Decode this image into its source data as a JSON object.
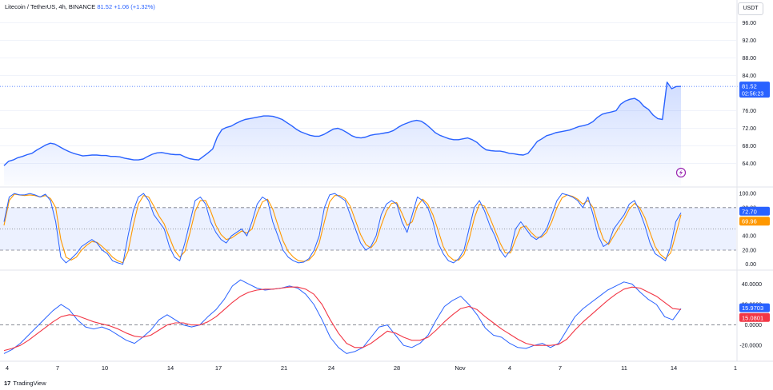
{
  "header": {
    "symbol": "Litecoin / TetherUS, 4h, BINANCE",
    "price": "81.52",
    "change": "+1.06 (+1.32%)"
  },
  "currency_button": "USDT",
  "branding": {
    "logo_mark": "17",
    "name": "TradingView"
  },
  "colors": {
    "price_line": "#2962ff",
    "signal": "#f23645",
    "stoch_d": "#ff9800",
    "band_fill": "#2962ff"
  },
  "x_ticks": [
    "4",
    "7",
    "10",
    "14",
    "17",
    "21",
    "24",
    "28",
    "Nov",
    "4",
    "7",
    "11",
    "14",
    "1"
  ],
  "chart_data": [
    {
      "type": "area",
      "name": "price",
      "y_ticks": [
        "96.00",
        "92.00",
        "88.00",
        "84.00",
        "76.00",
        "72.00",
        "68.00",
        "64.00"
      ],
      "ylim": [
        59,
        99
      ],
      "last_price_label": "81.52",
      "countdown_label": "02:56:23",
      "values": [
        63.5,
        64.5,
        64.8,
        65.3,
        65.6,
        66.0,
        66.3,
        67.0,
        67.6,
        68.2,
        68.6,
        68.4,
        67.8,
        67.2,
        66.7,
        66.3,
        66.0,
        65.7,
        65.8,
        65.9,
        65.9,
        65.8,
        65.8,
        65.6,
        65.6,
        65.5,
        65.2,
        65.0,
        64.8,
        64.8,
        65.0,
        65.6,
        66.1,
        66.4,
        66.5,
        66.3,
        66.1,
        66.0,
        66.0,
        65.5,
        65.1,
        64.9,
        64.8,
        65.6,
        66.4,
        67.3,
        70.0,
        71.7,
        72.2,
        72.5,
        73.1,
        73.6,
        74.0,
        74.2,
        74.4,
        74.6,
        74.8,
        74.8,
        74.7,
        74.4,
        74.0,
        73.3,
        72.6,
        71.8,
        71.2,
        70.8,
        70.4,
        70.2,
        70.2,
        70.6,
        71.2,
        71.8,
        72.0,
        71.6,
        71.0,
        70.3,
        69.9,
        69.8,
        70.0,
        70.4,
        70.6,
        70.7,
        70.9,
        71.1,
        71.5,
        72.2,
        72.8,
        73.2,
        73.6,
        73.8,
        73.6,
        72.9,
        72.0,
        71.0,
        70.4,
        70.0,
        69.6,
        69.4,
        69.4,
        69.6,
        69.8,
        69.4,
        68.8,
        67.8,
        67.1,
        66.9,
        66.8,
        66.8,
        66.6,
        66.3,
        66.2,
        66.0,
        65.9,
        66.3,
        67.6,
        69.0,
        69.6,
        70.3,
        70.6,
        71.0,
        71.2,
        71.4,
        71.6,
        72.0,
        72.4,
        72.6,
        72.9,
        73.5,
        74.5,
        75.2,
        75.5,
        75.7,
        76.0,
        77.5,
        78.2,
        78.6,
        78.8,
        78.2,
        77.0,
        76.3,
        75.0,
        74.2,
        74.0,
        82.5,
        81.0,
        81.5,
        81.52
      ],
      "y_min": 63.3,
      "y_max": 83.7
    },
    {
      "type": "line",
      "name": "stoch-rsi",
      "y_ticks": [
        "100.00",
        "80.00",
        "60.00",
        "40.00",
        "20.00",
        "0.00"
      ],
      "ylim": [
        -6,
        108
      ],
      "band": [
        20,
        80
      ],
      "midline": 50,
      "k_label": "72.70",
      "d_label": "69.96",
      "series": [
        {
          "values": [
            60,
            95,
            100,
            98,
            98,
            100,
            98,
            95,
            99,
            90,
            60,
            10,
            2,
            8,
            15,
            25,
            30,
            35,
            30,
            20,
            15,
            5,
            2,
            0,
            40,
            75,
            95,
            100,
            90,
            70,
            60,
            50,
            25,
            10,
            5,
            30,
            60,
            90,
            95,
            85,
            60,
            45,
            35,
            30,
            40,
            45,
            50,
            40,
            60,
            85,
            95,
            90,
            60,
            40,
            20,
            10,
            5,
            2,
            3,
            8,
            20,
            40,
            80,
            98,
            100,
            95,
            90,
            70,
            50,
            30,
            20,
            25,
            40,
            70,
            85,
            90,
            85,
            60,
            45,
            70,
            95,
            90,
            80,
            60,
            30,
            15,
            5,
            2,
            8,
            20,
            50,
            80,
            90,
            75,
            55,
            40,
            20,
            10,
            20,
            50,
            60,
            50,
            40,
            35,
            40,
            50,
            70,
            90,
            100,
            98,
            95,
            90,
            80,
            95,
            70,
            40,
            25,
            30,
            50,
            60,
            70,
            85,
            90,
            75,
            55,
            30,
            15,
            10,
            5,
            25,
            60,
            72.7
          ]
        },
        {
          "values": [
            55,
            90,
            99,
            98,
            97,
            98,
            97,
            95,
            97,
            93,
            80,
            35,
            10,
            6,
            10,
            20,
            27,
            32,
            31,
            25,
            18,
            10,
            5,
            2,
            18,
            55,
            85,
            97,
            95,
            82,
            68,
            57,
            38,
            20,
            10,
            18,
            45,
            75,
            90,
            90,
            75,
            55,
            42,
            35,
            37,
            42,
            47,
            44,
            50,
            72,
            88,
            92,
            78,
            55,
            33,
            18,
            10,
            5,
            4,
            6,
            14,
            30,
            60,
            88,
            97,
            97,
            93,
            82,
            62,
            42,
            28,
            23,
            32,
            55,
            75,
            86,
            87,
            72,
            55,
            60,
            82,
            92,
            85,
            70,
            48,
            25,
            12,
            6,
            6,
            14,
            35,
            65,
            85,
            82,
            66,
            48,
            30,
            16,
            16,
            35,
            52,
            54,
            45,
            38,
            38,
            45,
            60,
            80,
            94,
            98,
            96,
            92,
            85,
            90,
            80,
            55,
            35,
            28,
            40,
            52,
            64,
            78,
            86,
            80,
            66,
            45,
            25,
            14,
            8,
            16,
            42,
            69.96
          ]
        }
      ]
    },
    {
      "type": "line",
      "name": "oscillator",
      "y_ticks": [
        "40.0000",
        "20.0000",
        "0.0000",
        "-20.0000"
      ],
      "ylim": [
        -30,
        52
      ],
      "zero_line": 0,
      "main_label": "15.9703",
      "signal_label": "15.0801",
      "series": [
        {
          "values": [
            -28,
            -24,
            -18,
            -10,
            -2,
            6,
            14,
            20,
            15,
            5,
            -2,
            -4,
            -2,
            -5,
            -10,
            -15,
            -18,
            -12,
            -5,
            5,
            10,
            5,
            0,
            -2,
            0,
            8,
            15,
            25,
            38,
            44,
            40,
            36,
            34,
            35,
            36,
            38,
            36,
            30,
            20,
            5,
            -12,
            -22,
            -28,
            -26,
            -22,
            -12,
            -2,
            0,
            -10,
            -20,
            -22,
            -18,
            -10,
            5,
            18,
            24,
            28,
            20,
            10,
            -3,
            -10,
            -12,
            -18,
            -22,
            -23,
            -20,
            -18,
            -22,
            -18,
            -5,
            8,
            16,
            22,
            28,
            34,
            38,
            42,
            40,
            32,
            25,
            20,
            8,
            5,
            15.97
          ]
        },
        {
          "values": [
            -25,
            -23,
            -20,
            -15,
            -9,
            -3,
            3,
            8,
            10,
            9,
            6,
            3,
            1,
            -1,
            -4,
            -8,
            -11,
            -12,
            -10,
            -5,
            0,
            2,
            2,
            0,
            0,
            3,
            8,
            15,
            22,
            28,
            32,
            34,
            35,
            35,
            36,
            37,
            37,
            35,
            30,
            20,
            5,
            -8,
            -18,
            -22,
            -22,
            -18,
            -12,
            -6,
            -8,
            -12,
            -15,
            -15,
            -12,
            -5,
            3,
            10,
            16,
            18,
            15,
            8,
            2,
            -4,
            -9,
            -14,
            -18,
            -20,
            -20,
            -20,
            -19,
            -14,
            -5,
            3,
            10,
            17,
            24,
            30,
            35,
            37,
            36,
            32,
            28,
            22,
            16,
            15.08
          ]
        }
      ]
    }
  ]
}
